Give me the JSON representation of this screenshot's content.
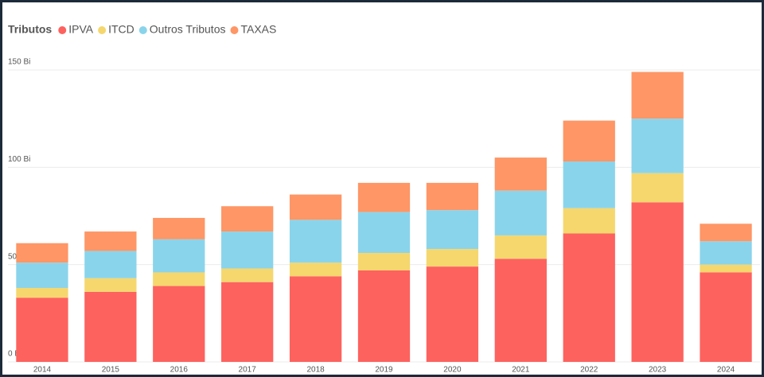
{
  "chart_data": {
    "type": "stacked_bar",
    "legend_title": "Tributos",
    "categories": [
      "2014",
      "2015",
      "2016",
      "2017",
      "2018",
      "2019",
      "2020",
      "2021",
      "2022",
      "2023",
      "2024"
    ],
    "series": [
      {
        "name": "IPVA",
        "color": "#fd625e",
        "values": [
          33,
          36,
          39,
          41,
          44,
          47,
          49,
          53,
          66,
          82,
          46
        ]
      },
      {
        "name": "ITCD",
        "color": "#f5d76e",
        "values": [
          5,
          7,
          7,
          7,
          7,
          9,
          9,
          12,
          13,
          15,
          4
        ]
      },
      {
        "name": "Outros Tributos",
        "color": "#8ad4eb",
        "values": [
          13,
          14,
          17,
          19,
          22,
          21,
          20,
          23,
          24,
          28,
          12
        ]
      },
      {
        "name": "TAXAS",
        "color": "#fe9666",
        "values": [
          10,
          10,
          11,
          13,
          13,
          15,
          14,
          17,
          21,
          24,
          9
        ]
      }
    ],
    "ylim": [
      0,
      150
    ],
    "yticks": [
      {
        "value": 0,
        "label": "0 Bi"
      },
      {
        "value": 50,
        "label": "50 Bi"
      },
      {
        "value": 100,
        "label": "100 Bi"
      },
      {
        "value": 150,
        "label": "150 Bi"
      }
    ],
    "grid": true,
    "legend_position": "top-left"
  }
}
